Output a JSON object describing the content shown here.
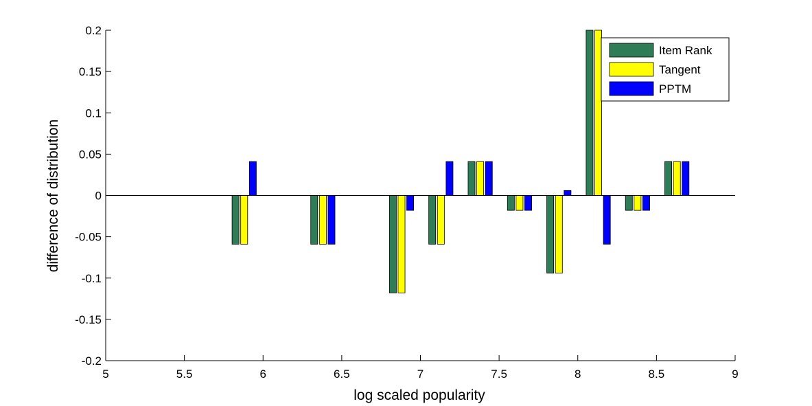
{
  "chart_data": {
    "type": "bar",
    "title": "",
    "xlabel": "log scaled popularity",
    "ylabel": "difference of distribution",
    "xlim": [
      5,
      9
    ],
    "ylim": [
      -0.2,
      0.2
    ],
    "xticks": [
      5,
      5.5,
      6,
      6.5,
      7,
      7.5,
      8,
      8.5,
      9
    ],
    "xtick_labels": [
      "5",
      "5.5",
      "6",
      "6.5",
      "7",
      "7.5",
      "8",
      "8.5",
      "9"
    ],
    "yticks": [
      0.2,
      0.15,
      0.1,
      0.05,
      0,
      -0.05,
      -0.1,
      -0.15,
      -0.2
    ],
    "ytick_labels": [
      "0.2",
      "0.15",
      "0.1",
      "0.05",
      "0",
      "-0.05",
      "-0.1",
      "-0.15",
      "-0.2"
    ],
    "x": [
      5.88,
      6.38,
      6.88,
      7.13,
      7.38,
      7.63,
      7.88,
      8.13,
      8.38,
      8.63
    ],
    "group_width": 0.165,
    "legend": "top-right",
    "grid": false,
    "series": [
      {
        "name": "Item Rank",
        "color": "#2e7d57",
        "values": [
          -0.059,
          -0.059,
          -0.118,
          -0.059,
          0.041,
          -0.018,
          -0.094,
          0.2,
          -0.018,
          0.041
        ]
      },
      {
        "name": "Tangent",
        "color": "#ffff00",
        "values": [
          -0.059,
          -0.059,
          -0.118,
          -0.059,
          0.041,
          -0.018,
          -0.094,
          0.2,
          -0.018,
          0.041
        ]
      },
      {
        "name": "PPTM",
        "color": "#0000ff",
        "values": [
          0.041,
          -0.059,
          -0.018,
          0.041,
          0.041,
          -0.018,
          0.006,
          -0.059,
          -0.018,
          0.041
        ]
      }
    ]
  }
}
